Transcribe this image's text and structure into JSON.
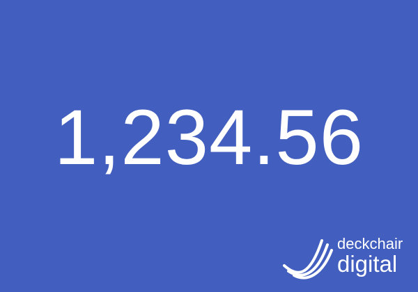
{
  "display": {
    "value": "1,234.56"
  },
  "logo": {
    "line1": "deckchair",
    "line2": "digital",
    "icon": "deckchair-wave-icon"
  },
  "colors": {
    "background": "#425fbf",
    "text": "#ffffff"
  }
}
